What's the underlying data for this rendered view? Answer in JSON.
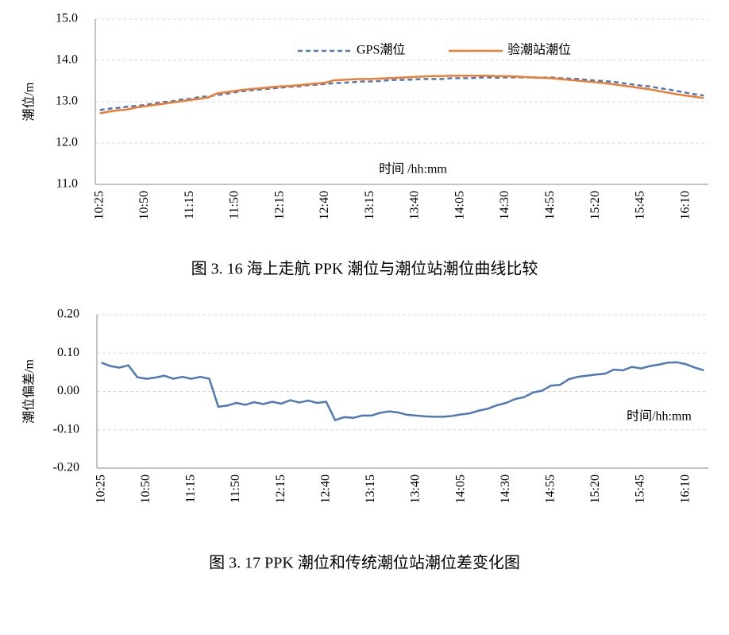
{
  "chart_data": [
    {
      "type": "line",
      "caption": "图 3. 16 海上走航 PPK 潮位与潮位站潮位曲线比较",
      "y_label": "潮位/m",
      "x_label": "时间 /hh:mm",
      "categories": [
        "10:25",
        null,
        null,
        null,
        null,
        "10:50",
        null,
        null,
        null,
        null,
        "11:15",
        null,
        null,
        null,
        null,
        "11:50",
        null,
        null,
        null,
        null,
        "12:15",
        null,
        null,
        null,
        null,
        "12:40",
        null,
        null,
        null,
        null,
        "13:15",
        null,
        null,
        null,
        null,
        "13:40",
        null,
        null,
        null,
        null,
        "14:05",
        null,
        null,
        null,
        null,
        "14:30",
        null,
        null,
        null,
        null,
        "14:55",
        null,
        null,
        null,
        null,
        "15:20",
        null,
        null,
        null,
        null,
        "15:45",
        null,
        null,
        null,
        null,
        "16:10",
        null,
        null
      ],
      "series": [
        {
          "name": "GPS潮位",
          "color": "#4f78b8",
          "dash": true,
          "values": [
            12.8,
            12.83,
            12.85,
            12.88,
            12.9,
            12.92,
            12.96,
            12.99,
            13.01,
            13.05,
            13.07,
            13.11,
            13.13,
            13.16,
            13.19,
            13.23,
            13.26,
            13.28,
            13.3,
            13.32,
            13.34,
            13.36,
            13.37,
            13.4,
            13.41,
            13.43,
            13.45,
            13.46,
            13.47,
            13.49,
            13.49,
            13.5,
            13.52,
            13.53,
            13.53,
            13.54,
            13.55,
            13.55,
            13.55,
            13.57,
            13.57,
            13.57,
            13.58,
            13.59,
            13.58,
            13.59,
            13.59,
            13.59,
            13.59,
            13.58,
            13.59,
            13.57,
            13.56,
            13.55,
            13.53,
            13.51,
            13.5,
            13.48,
            13.45,
            13.42,
            13.39,
            13.37,
            13.33,
            13.3,
            13.26,
            13.22,
            13.18,
            13.15
          ]
        },
        {
          "name": "验潮站潮位",
          "color": "#ed7d31",
          "dash": false,
          "values": [
            12.72,
            12.76,
            12.79,
            12.81,
            12.86,
            12.89,
            12.92,
            12.95,
            12.98,
            13.01,
            13.04,
            13.07,
            13.1,
            13.2,
            13.23,
            13.26,
            13.29,
            13.31,
            13.33,
            13.35,
            13.37,
            13.38,
            13.4,
            13.42,
            13.44,
            13.46,
            13.52,
            13.53,
            13.54,
            13.55,
            13.55,
            13.56,
            13.57,
            13.58,
            13.59,
            13.6,
            13.61,
            13.62,
            13.62,
            13.63,
            13.63,
            13.63,
            13.63,
            13.63,
            13.62,
            13.62,
            13.61,
            13.6,
            13.59,
            13.58,
            13.57,
            13.55,
            13.53,
            13.51,
            13.49,
            13.47,
            13.45,
            13.42,
            13.39,
            13.36,
            13.33,
            13.3,
            13.26,
            13.22,
            13.18,
            13.15,
            13.12,
            13.09
          ]
        }
      ],
      "ylim": [
        11,
        15
      ],
      "yticks": [
        {
          "value": 11,
          "label": "11.0"
        },
        {
          "value": 12,
          "label": "12.0"
        },
        {
          "value": 13,
          "label": "13.0"
        },
        {
          "value": 14,
          "label": "14.0"
        },
        {
          "value": 15,
          "label": "15.0"
        }
      ],
      "grid": true,
      "legend": "top"
    },
    {
      "type": "line",
      "caption": "图 3. 17 PPK 潮位和传统潮位站潮位差变化图",
      "y_label": "潮位偏差/m",
      "x_label": "时间/hh:mm",
      "categories": [
        "10:25",
        null,
        null,
        null,
        null,
        "10:50",
        null,
        null,
        null,
        null,
        "11:15",
        null,
        null,
        null,
        null,
        "11:50",
        null,
        null,
        null,
        null,
        "12:15",
        null,
        null,
        null,
        null,
        "12:40",
        null,
        null,
        null,
        null,
        "13:15",
        null,
        null,
        null,
        null,
        "13:40",
        null,
        null,
        null,
        null,
        "14:05",
        null,
        null,
        null,
        null,
        "14:30",
        null,
        null,
        null,
        null,
        "14:55",
        null,
        null,
        null,
        null,
        "15:20",
        null,
        null,
        null,
        null,
        "15:45",
        null,
        null,
        null,
        null,
        "16:10",
        null,
        null
      ],
      "color": "#4f78b8",
      "values": [
        0.075,
        0.066,
        0.062,
        0.068,
        0.037,
        0.033,
        0.036,
        0.041,
        0.033,
        0.038,
        0.033,
        0.038,
        0.033,
        -0.04,
        -0.037,
        -0.03,
        -0.035,
        -0.028,
        -0.033,
        -0.027,
        -0.032,
        -0.023,
        -0.029,
        -0.024,
        -0.03,
        -0.027,
        -0.075,
        -0.067,
        -0.069,
        -0.063,
        -0.063,
        -0.056,
        -0.052,
        -0.055,
        -0.061,
        -0.063,
        -0.065,
        -0.066,
        -0.066,
        -0.064,
        -0.06,
        -0.057,
        -0.05,
        -0.045,
        -0.036,
        -0.03,
        -0.02,
        -0.015,
        -0.003,
        0.002,
        0.015,
        0.017,
        0.032,
        0.038,
        0.041,
        0.044,
        0.046,
        0.057,
        0.055,
        0.064,
        0.06,
        0.066,
        0.07,
        0.075,
        0.076,
        0.071,
        0.062,
        0.055
      ],
      "ylim": [
        -0.2,
        0.2
      ],
      "yticks": [
        {
          "value": -0.2,
          "label": "-0.20"
        },
        {
          "value": -0.1,
          "label": "-0.10"
        },
        {
          "value": 0,
          "label": "0.00"
        },
        {
          "value": 0.1,
          "label": "0.10"
        },
        {
          "value": 0.2,
          "label": "0.20"
        }
      ],
      "grid": true
    }
  ]
}
